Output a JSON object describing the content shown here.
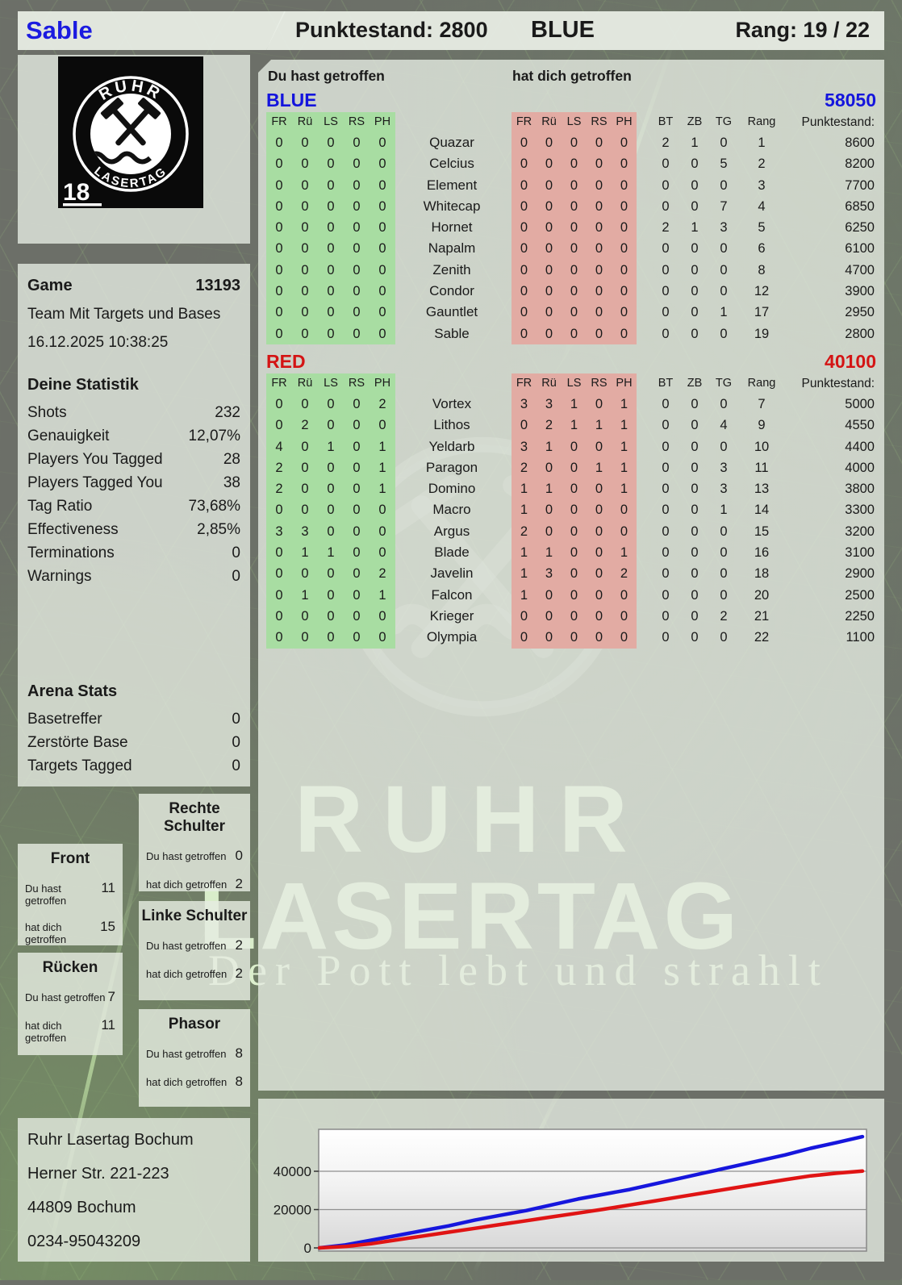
{
  "header": {
    "player_name": "Sable",
    "score": "Punktestand: 2800",
    "team": "BLUE",
    "rank": "Rang: 19 / 22"
  },
  "logo": {
    "top_text": "RUHR",
    "bottom_text": "LASERTAG",
    "age_badge": "18"
  },
  "game_info": {
    "label": "Game",
    "number": "13193",
    "mode": "Team Mit Targets und Bases",
    "datetime": "16.12.2025 10:38:25"
  },
  "your_stats": {
    "title": "Deine Statistik",
    "rows": [
      {
        "label": "Shots",
        "value": "232"
      },
      {
        "label": "Genauigkeit",
        "value": "12,07%"
      },
      {
        "label": "Players You Tagged",
        "value": "28"
      },
      {
        "label": "Players Tagged You",
        "value": "38"
      },
      {
        "label": "Tag Ratio",
        "value": "73,68%"
      },
      {
        "label": "Effectiveness",
        "value": "2,85%"
      },
      {
        "label": "Terminations",
        "value": "0"
      },
      {
        "label": "Warnings",
        "value": "0"
      }
    ]
  },
  "arena_stats": {
    "title": "Arena Stats",
    "rows": [
      {
        "label": "Basetreffer",
        "value": "0"
      },
      {
        "label": "Zerstörte Base",
        "value": "0"
      },
      {
        "label": "Targets Tagged",
        "value": "0"
      }
    ]
  },
  "hit_labels": {
    "you": "Du hast getroffen",
    "them": "hat dich getroffen"
  },
  "hit_zones": [
    {
      "id": "front",
      "title": "Front",
      "you": "11",
      "them": "15"
    },
    {
      "id": "ruecken",
      "title": "Rücken",
      "you": "7",
      "them": "11"
    },
    {
      "id": "rechte-schulter",
      "title": "Rechte Schulter",
      "you": "0",
      "them": "2"
    },
    {
      "id": "linke-schulter",
      "title": "Linke Schulter",
      "you": "2",
      "them": "2"
    },
    {
      "id": "phasor",
      "title": "Phasor",
      "you": "8",
      "them": "8"
    }
  ],
  "score_table": {
    "you_header": "Du hast getroffen",
    "them_header": "hat dich getroffen",
    "zone_columns": [
      "FR",
      "Rü",
      "LS",
      "RS",
      "PH"
    ],
    "stat_columns": [
      "BT",
      "ZB",
      "TG",
      "Rang",
      "Punktestand:"
    ],
    "teams": [
      {
        "name": "BLUE",
        "total": "58050",
        "accent": "#1414dd",
        "rows": [
          {
            "you": [
              "0",
              "0",
              "0",
              "0",
              "0"
            ],
            "name": "Quazar",
            "them": [
              "0",
              "0",
              "0",
              "0",
              "0"
            ],
            "bt": "2",
            "zb": "1",
            "tg": "0",
            "rank": "1",
            "score": "8600"
          },
          {
            "you": [
              "0",
              "0",
              "0",
              "0",
              "0"
            ],
            "name": "Celcius",
            "them": [
              "0",
              "0",
              "0",
              "0",
              "0"
            ],
            "bt": "0",
            "zb": "0",
            "tg": "5",
            "rank": "2",
            "score": "8200"
          },
          {
            "you": [
              "0",
              "0",
              "0",
              "0",
              "0"
            ],
            "name": "Element",
            "them": [
              "0",
              "0",
              "0",
              "0",
              "0"
            ],
            "bt": "0",
            "zb": "0",
            "tg": "0",
            "rank": "3",
            "score": "7700"
          },
          {
            "you": [
              "0",
              "0",
              "0",
              "0",
              "0"
            ],
            "name": "Whitecap",
            "them": [
              "0",
              "0",
              "0",
              "0",
              "0"
            ],
            "bt": "0",
            "zb": "0",
            "tg": "7",
            "rank": "4",
            "score": "6850"
          },
          {
            "you": [
              "0",
              "0",
              "0",
              "0",
              "0"
            ],
            "name": "Hornet",
            "them": [
              "0",
              "0",
              "0",
              "0",
              "0"
            ],
            "bt": "2",
            "zb": "1",
            "tg": "3",
            "rank": "5",
            "score": "6250"
          },
          {
            "you": [
              "0",
              "0",
              "0",
              "0",
              "0"
            ],
            "name": "Napalm",
            "them": [
              "0",
              "0",
              "0",
              "0",
              "0"
            ],
            "bt": "0",
            "zb": "0",
            "tg": "0",
            "rank": "6",
            "score": "6100"
          },
          {
            "you": [
              "0",
              "0",
              "0",
              "0",
              "0"
            ],
            "name": "Zenith",
            "them": [
              "0",
              "0",
              "0",
              "0",
              "0"
            ],
            "bt": "0",
            "zb": "0",
            "tg": "0",
            "rank": "8",
            "score": "4700"
          },
          {
            "you": [
              "0",
              "0",
              "0",
              "0",
              "0"
            ],
            "name": "Condor",
            "them": [
              "0",
              "0",
              "0",
              "0",
              "0"
            ],
            "bt": "0",
            "zb": "0",
            "tg": "0",
            "rank": "12",
            "score": "3900"
          },
          {
            "you": [
              "0",
              "0",
              "0",
              "0",
              "0"
            ],
            "name": "Gauntlet",
            "them": [
              "0",
              "0",
              "0",
              "0",
              "0"
            ],
            "bt": "0",
            "zb": "0",
            "tg": "1",
            "rank": "17",
            "score": "2950"
          },
          {
            "you": [
              "0",
              "0",
              "0",
              "0",
              "0"
            ],
            "name": "Sable",
            "them": [
              "0",
              "0",
              "0",
              "0",
              "0"
            ],
            "bt": "0",
            "zb": "0",
            "tg": "0",
            "rank": "19",
            "score": "2800"
          }
        ]
      },
      {
        "name": "RED",
        "total": "40100",
        "accent": "#d41414",
        "rows": [
          {
            "you": [
              "0",
              "0",
              "0",
              "0",
              "2"
            ],
            "name": "Vortex",
            "them": [
              "3",
              "3",
              "1",
              "0",
              "1"
            ],
            "bt": "0",
            "zb": "0",
            "tg": "0",
            "rank": "7",
            "score": "5000"
          },
          {
            "you": [
              "0",
              "2",
              "0",
              "0",
              "0"
            ],
            "name": "Lithos",
            "them": [
              "0",
              "2",
              "1",
              "1",
              "1"
            ],
            "bt": "0",
            "zb": "0",
            "tg": "4",
            "rank": "9",
            "score": "4550"
          },
          {
            "you": [
              "4",
              "0",
              "1",
              "0",
              "1"
            ],
            "name": "Yeldarb",
            "them": [
              "3",
              "1",
              "0",
              "0",
              "1"
            ],
            "bt": "0",
            "zb": "0",
            "tg": "0",
            "rank": "10",
            "score": "4400"
          },
          {
            "you": [
              "2",
              "0",
              "0",
              "0",
              "1"
            ],
            "name": "Paragon",
            "them": [
              "2",
              "0",
              "0",
              "1",
              "1"
            ],
            "bt": "0",
            "zb": "0",
            "tg": "3",
            "rank": "11",
            "score": "4000"
          },
          {
            "you": [
              "2",
              "0",
              "0",
              "0",
              "1"
            ],
            "name": "Domino",
            "them": [
              "1",
              "1",
              "0",
              "0",
              "1"
            ],
            "bt": "0",
            "zb": "0",
            "tg": "3",
            "rank": "13",
            "score": "3800"
          },
          {
            "you": [
              "0",
              "0",
              "0",
              "0",
              "0"
            ],
            "name": "Macro",
            "them": [
              "1",
              "0",
              "0",
              "0",
              "0"
            ],
            "bt": "0",
            "zb": "0",
            "tg": "1",
            "rank": "14",
            "score": "3300"
          },
          {
            "you": [
              "3",
              "3",
              "0",
              "0",
              "0"
            ],
            "name": "Argus",
            "them": [
              "2",
              "0",
              "0",
              "0",
              "0"
            ],
            "bt": "0",
            "zb": "0",
            "tg": "0",
            "rank": "15",
            "score": "3200"
          },
          {
            "you": [
              "0",
              "1",
              "1",
              "0",
              "0"
            ],
            "name": "Blade",
            "them": [
              "1",
              "1",
              "0",
              "0",
              "1"
            ],
            "bt": "0",
            "zb": "0",
            "tg": "0",
            "rank": "16",
            "score": "3100"
          },
          {
            "you": [
              "0",
              "0",
              "0",
              "0",
              "2"
            ],
            "name": "Javelin",
            "them": [
              "1",
              "3",
              "0",
              "0",
              "2"
            ],
            "bt": "0",
            "zb": "0",
            "tg": "0",
            "rank": "18",
            "score": "2900"
          },
          {
            "you": [
              "0",
              "1",
              "0",
              "0",
              "1"
            ],
            "name": "Falcon",
            "them": [
              "1",
              "0",
              "0",
              "0",
              "0"
            ],
            "bt": "0",
            "zb": "0",
            "tg": "0",
            "rank": "20",
            "score": "2500"
          },
          {
            "you": [
              "0",
              "0",
              "0",
              "0",
              "0"
            ],
            "name": "Krieger",
            "them": [
              "0",
              "0",
              "0",
              "0",
              "0"
            ],
            "bt": "0",
            "zb": "0",
            "tg": "2",
            "rank": "21",
            "score": "2250"
          },
          {
            "you": [
              "0",
              "0",
              "0",
              "0",
              "0"
            ],
            "name": "Olympia",
            "them": [
              "0",
              "0",
              "0",
              "0",
              "0"
            ],
            "bt": "0",
            "zb": "0",
            "tg": "0",
            "rank": "22",
            "score": "1100"
          }
        ]
      }
    ]
  },
  "address": {
    "lines": [
      "Ruhr Lasertag Bochum",
      "Herner Str. 221-223",
      "44809 Bochum",
      "0234-95043209"
    ]
  },
  "watermark": {
    "line1": "RUHR",
    "line2": "LASERTAG",
    "tagline": "Der Pott lebt und strahlt"
  },
  "chart_data": {
    "type": "line",
    "title": "",
    "xlabel": "",
    "ylabel": "",
    "x_tick_labels": [],
    "yticks": [
      0,
      20000,
      40000
    ],
    "ylim": [
      0,
      62000
    ],
    "grid": true,
    "legend": "none",
    "series": [
      {
        "name": "BLUE",
        "color": "#1616dd",
        "values": [
          0,
          1500,
          4000,
          6500,
          9000,
          11500,
          14500,
          17000,
          19500,
          22500,
          25500,
          28000,
          30500,
          33500,
          36500,
          39500,
          42500,
          45500,
          48500,
          52000,
          55000,
          58050
        ]
      },
      {
        "name": "RED",
        "color": "#e01414",
        "values": [
          0,
          700,
          2200,
          4200,
          6200,
          8200,
          10200,
          12200,
          14200,
          16200,
          18200,
          20200,
          22400,
          24600,
          26800,
          29000,
          31200,
          33400,
          35600,
          37600,
          39000,
          40100
        ]
      }
    ]
  }
}
